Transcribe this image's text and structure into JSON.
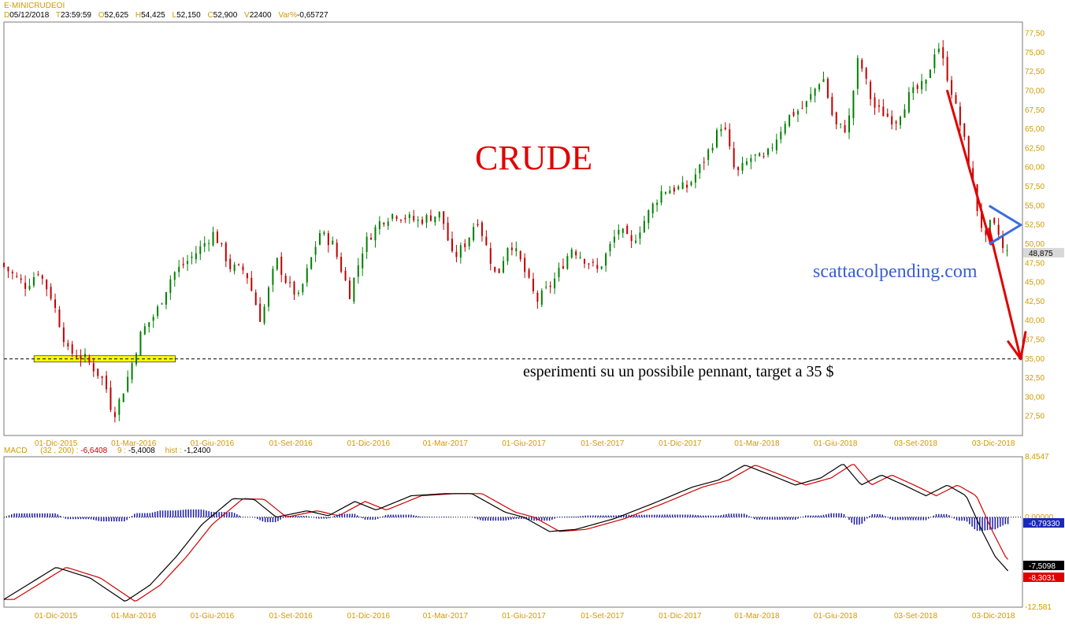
{
  "header": {
    "symbol": "E-MINICRUDEOI",
    "fields": [
      {
        "label": "D",
        "value": "05/12/2018"
      },
      {
        "label": "T",
        "value": "23:59:59"
      },
      {
        "label": "O",
        "value": "52,625"
      },
      {
        "label": "H",
        "value": "54,425"
      },
      {
        "label": "L",
        "value": "52,150"
      },
      {
        "label": "C",
        "value": "52,900"
      },
      {
        "label": "V",
        "value": "22400"
      },
      {
        "label": "Var%",
        "value": "-0,65727"
      }
    ]
  },
  "macd_header": {
    "name": "MACD",
    "params": "(32 , 200) :",
    "macd_value": "-6,6408",
    "signal_label": "9 :",
    "signal_value": "-5,4008",
    "hist_label": "hist :",
    "hist_value": "-1,2400"
  },
  "chart_data": [
    {
      "type": "candlestick",
      "title": "CRUDE",
      "x_tick_labels": [
        "01-Dic-2015",
        "01-Mar-2016",
        "01-Giu-2016",
        "01-Set-2016",
        "01-Dic-2016",
        "01-Mar-2017",
        "01-Giu-2017",
        "01-Set-2017",
        "01-Dic-2017",
        "01-Mar-2018",
        "01-Giu-2018",
        "03-Set-2018",
        "03-Dic-2018"
      ],
      "y_tick_labels": [
        "27,50",
        "30,00",
        "32,50",
        "35,00",
        "37,50",
        "40,00",
        "42,50",
        "45,00",
        "47,50",
        "50,00",
        "52,50",
        "55,00",
        "57,50",
        "60,00",
        "62,50",
        "65,00",
        "67,50",
        "70,00",
        "72,50",
        "75,00",
        "77,50"
      ],
      "ylim": [
        25.0,
        79.0
      ],
      "last_price_label": "48,875",
      "last_price": 48.875,
      "price_path": [
        [
          "2015-10-01",
          47.5
        ],
        [
          "2015-11-01",
          44.5
        ],
        [
          "2015-11-15",
          46.5
        ],
        [
          "2015-12-01",
          43.0
        ],
        [
          "2015-12-20",
          36.0
        ],
        [
          "2016-01-10",
          35.0
        ],
        [
          "2016-02-01",
          32.0
        ],
        [
          "2016-02-11",
          27.5
        ],
        [
          "2016-02-25",
          31.5
        ],
        [
          "2016-03-15",
          38.5
        ],
        [
          "2016-04-01",
          41.0
        ],
        [
          "2016-04-20",
          46.0
        ],
        [
          "2016-05-15",
          48.5
        ],
        [
          "2016-06-08",
          51.5
        ],
        [
          "2016-06-27",
          47.0
        ],
        [
          "2016-07-15",
          46.5
        ],
        [
          "2016-08-02",
          40.0
        ],
        [
          "2016-08-20",
          48.0
        ],
        [
          "2016-09-01",
          45.0
        ],
        [
          "2016-09-15",
          43.0
        ],
        [
          "2016-10-10",
          51.5
        ],
        [
          "2016-10-25",
          50.0
        ],
        [
          "2016-11-14",
          43.5
        ],
        [
          "2016-12-01",
          50.0
        ],
        [
          "2016-12-20",
          53.0
        ],
        [
          "2017-01-05",
          54.0
        ],
        [
          "2017-02-01",
          53.0
        ],
        [
          "2017-03-01",
          54.0
        ],
        [
          "2017-03-15",
          48.0
        ],
        [
          "2017-04-01",
          50.5
        ],
        [
          "2017-04-12",
          53.5
        ],
        [
          "2017-05-05",
          45.5
        ],
        [
          "2017-05-20",
          50.5
        ],
        [
          "2017-06-01",
          48.0
        ],
        [
          "2017-06-21",
          42.5
        ],
        [
          "2017-07-10",
          45.0
        ],
        [
          "2017-08-01",
          49.5
        ],
        [
          "2017-09-01",
          46.5
        ],
        [
          "2017-09-25",
          52.0
        ],
        [
          "2017-10-10",
          50.0
        ],
        [
          "2017-11-01",
          54.5
        ],
        [
          "2017-11-15",
          57.0
        ],
        [
          "2017-12-15",
          57.5
        ],
        [
          "2018-01-01",
          60.5
        ],
        [
          "2018-01-25",
          66.0
        ],
        [
          "2018-02-09",
          59.0
        ],
        [
          "2018-03-01",
          61.5
        ],
        [
          "2018-03-15",
          61.0
        ],
        [
          "2018-04-10",
          66.5
        ],
        [
          "2018-05-01",
          68.0
        ],
        [
          "2018-05-22",
          72.0
        ],
        [
          "2018-06-05",
          65.5
        ],
        [
          "2018-06-20",
          65.0
        ],
        [
          "2018-07-03",
          74.5
        ],
        [
          "2018-07-20",
          68.0
        ],
        [
          "2018-08-15",
          66.0
        ],
        [
          "2018-09-01",
          69.5
        ],
        [
          "2018-09-20",
          71.0
        ],
        [
          "2018-10-03",
          76.5
        ],
        [
          "2018-10-20",
          70.0
        ],
        [
          "2018-11-05",
          63.0
        ],
        [
          "2018-11-20",
          54.0
        ],
        [
          "2018-11-29",
          50.5
        ],
        [
          "2018-12-05",
          52.9
        ],
        [
          "2018-12-15",
          51.0
        ],
        [
          "2018-12-20",
          48.875
        ]
      ],
      "reference_line": 35.0,
      "annotations": [
        {
          "text": "CRUDE",
          "color": "#e00000"
        },
        {
          "text": "scattacolpending.com",
          "color": "#3a5fd0"
        },
        {
          "text": "esperimenti su un possibile pennant, target a 35 $",
          "color": "#000000"
        }
      ],
      "support_zone": {
        "y": 35.0,
        "from": "2015-12-01",
        "to": "2016-04-15",
        "color": "#ffff00"
      },
      "arrows": [
        {
          "from": [
            "2018-10-10",
            70.0
          ],
          "to": [
            "2018-11-30",
            50.0
          ],
          "color": "#e00000"
        },
        {
          "from": [
            "2018-11-28",
            52.0
          ],
          "to": [
            "2019-01-04",
            35.0
          ],
          "color": "#e00000"
        }
      ],
      "pennant": {
        "color": "#3a6de0",
        "apex": [
          "2019-01-04",
          52.5
        ],
        "upper": [
          "2018-11-28",
          55.0
        ],
        "lower": [
          "2018-11-28",
          50.0
        ]
      }
    },
    {
      "type": "macd",
      "y_tick_labels": [
        "8,4547",
        "0,00000",
        "-12,581"
      ],
      "ylim": [
        -12.581,
        8.4547
      ],
      "zero_label": "-0,79330",
      "macd_label": "-7,5098",
      "signal_label_value": "-8,3031",
      "macd_path": [
        [
          "2015-10-01",
          -11.5
        ],
        [
          "2015-12-01",
          -7.0
        ],
        [
          "2016-01-10",
          -8.5
        ],
        [
          "2016-02-20",
          -11.8
        ],
        [
          "2016-03-20",
          -9.5
        ],
        [
          "2016-04-20",
          -5.5
        ],
        [
          "2016-05-20",
          -1.0
        ],
        [
          "2016-06-25",
          2.6
        ],
        [
          "2016-07-20",
          2.5
        ],
        [
          "2016-08-15",
          0.0
        ],
        [
          "2016-09-20",
          0.9
        ],
        [
          "2016-10-15",
          0.2
        ],
        [
          "2016-11-15",
          2.2
        ],
        [
          "2016-12-10",
          1.0
        ],
        [
          "2017-01-20",
          3.0
        ],
        [
          "2017-03-01",
          3.3
        ],
        [
          "2017-04-01",
          3.3
        ],
        [
          "2017-05-10",
          0.7
        ],
        [
          "2017-06-01",
          0.0
        ],
        [
          "2017-07-01",
          -2.0
        ],
        [
          "2017-08-01",
          -1.7
        ],
        [
          "2017-09-15",
          -0.2
        ],
        [
          "2017-11-01",
          2.0
        ],
        [
          "2017-12-15",
          4.2
        ],
        [
          "2018-01-15",
          5.2
        ],
        [
          "2018-02-15",
          7.3
        ],
        [
          "2018-03-15",
          6.0
        ],
        [
          "2018-04-15",
          4.5
        ],
        [
          "2018-05-15",
          5.5
        ],
        [
          "2018-06-10",
          7.5
        ],
        [
          "2018-07-01",
          4.5
        ],
        [
          "2018-07-25",
          5.9
        ],
        [
          "2018-08-20",
          4.5
        ],
        [
          "2018-09-15",
          3.0
        ],
        [
          "2018-10-10",
          4.5
        ],
        [
          "2018-11-01",
          3.0
        ],
        [
          "2018-11-20",
          -2.0
        ],
        [
          "2018-12-05",
          -5.5
        ],
        [
          "2018-12-20",
          -7.5098
        ]
      ],
      "signal_lag_days": 12
    }
  ]
}
